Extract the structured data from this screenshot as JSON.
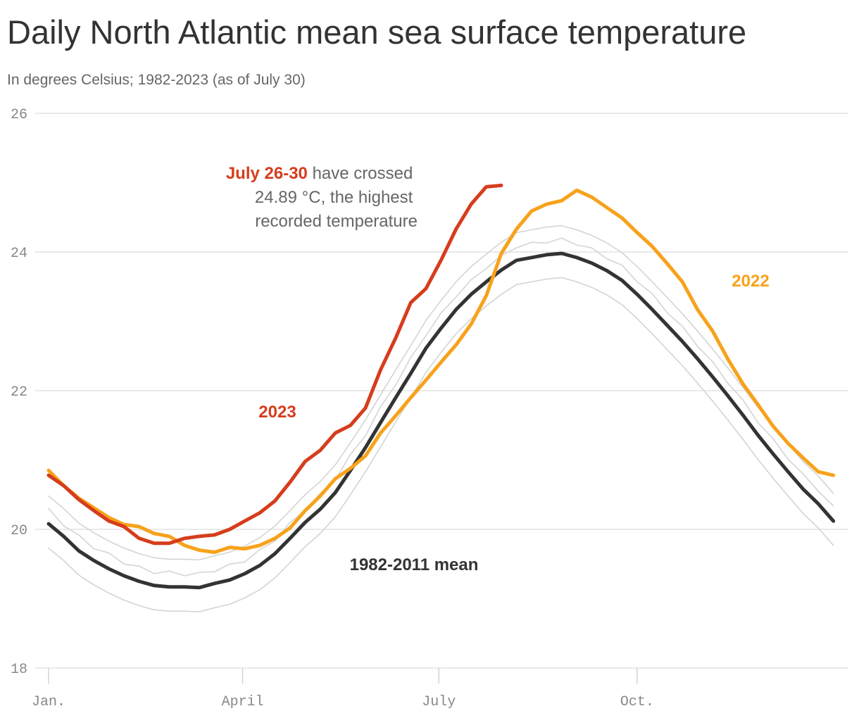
{
  "chart_data": {
    "type": "line",
    "title": "Daily North Atlantic mean sea surface temperature",
    "subtitle": "In degrees Celsius; 1982-2023 (as of July 30)",
    "annotation": {
      "highlight": "July 26-30",
      "lines": [
        "have crossed",
        "24.89 °C, the highest",
        "recorded temperature"
      ]
    },
    "x": [
      1,
      8,
      15,
      22,
      29,
      36,
      43,
      50,
      57,
      64,
      71,
      78,
      85,
      92,
      99,
      106,
      113,
      120,
      127,
      134,
      141,
      148,
      155,
      162,
      169,
      176,
      183,
      190,
      197,
      204,
      211,
      218,
      225,
      232,
      239,
      246,
      253,
      260,
      267,
      274,
      281,
      288,
      295,
      302,
      309,
      316,
      323,
      330,
      337,
      344,
      351,
      358,
      365
    ],
    "xlim": [
      1,
      372
    ],
    "xticks": [
      {
        "value": 1,
        "label": "Jan."
      },
      {
        "value": 91,
        "label": "April"
      },
      {
        "value": 182,
        "label": "July"
      },
      {
        "value": 274,
        "label": "Oct."
      }
    ],
    "ylim": [
      18,
      26
    ],
    "yticks": [
      18,
      20,
      22,
      24,
      26
    ],
    "grid": true,
    "series": [
      {
        "color": "#d4d4d4",
        "values": [
          20.48,
          20.3,
          20.09,
          19.95,
          19.83,
          19.73,
          19.65,
          19.59,
          19.57,
          19.57,
          19.56,
          19.62,
          19.67,
          19.76,
          19.88,
          20.05,
          20.27,
          20.5,
          20.69,
          20.93,
          21.25,
          21.58,
          21.94,
          22.3,
          22.65,
          23.01,
          23.3,
          23.57,
          23.79,
          23.97,
          24.14,
          24.28,
          24.32,
          24.36,
          24.38,
          24.32,
          24.24,
          24.13,
          23.99,
          23.79,
          23.57,
          23.34,
          23.11,
          22.86,
          22.6,
          22.33,
          22.05,
          21.76,
          21.49,
          21.23,
          20.98,
          20.77,
          20.52
        ]
      },
      {
        "color": "#d4d4d4",
        "values": [
          19.73,
          19.55,
          19.34,
          19.2,
          19.08,
          18.98,
          18.9,
          18.84,
          18.82,
          18.82,
          18.81,
          18.87,
          18.92,
          19.01,
          19.13,
          19.3,
          19.52,
          19.75,
          19.94,
          20.18,
          20.5,
          20.83,
          21.19,
          21.55,
          21.9,
          22.26,
          22.55,
          22.82,
          23.04,
          23.22,
          23.39,
          23.53,
          23.57,
          23.61,
          23.63,
          23.57,
          23.49,
          23.38,
          23.24,
          23.04,
          22.82,
          22.59,
          22.36,
          22.11,
          21.85,
          21.58,
          21.3,
          21.01,
          20.74,
          20.48,
          20.23,
          20.02,
          19.77
        ]
      },
      {
        "color": "#d4d4d4",
        "values": [
          20.3,
          20.05,
          19.92,
          19.72,
          19.66,
          19.5,
          19.47,
          19.36,
          19.4,
          19.33,
          19.38,
          19.39,
          19.5,
          19.53,
          19.71,
          19.83,
          20.1,
          20.27,
          20.52,
          20.71,
          21.08,
          21.35,
          21.77,
          22.08,
          22.48,
          22.79,
          23.12,
          23.35,
          23.6,
          23.76,
          23.95,
          24.06,
          24.14,
          24.13,
          24.2,
          24.1,
          24.06,
          23.9,
          23.81,
          23.57,
          23.4,
          23.12,
          22.93,
          22.64,
          22.42,
          22.11,
          21.87,
          21.54,
          21.31,
          21.01,
          20.8,
          20.55,
          20.34
        ]
      },
      {
        "name": "1982-2011 mean",
        "color": "#333333",
        "values": [
          20.08,
          19.9,
          19.69,
          19.55,
          19.43,
          19.33,
          19.25,
          19.19,
          19.17,
          19.17,
          19.16,
          19.22,
          19.27,
          19.36,
          19.48,
          19.65,
          19.87,
          20.1,
          20.29,
          20.53,
          20.85,
          21.18,
          21.54,
          21.9,
          22.25,
          22.61,
          22.9,
          23.17,
          23.39,
          23.57,
          23.74,
          23.88,
          23.92,
          23.96,
          23.98,
          23.92,
          23.84,
          23.73,
          23.59,
          23.39,
          23.17,
          22.94,
          22.71,
          22.46,
          22.2,
          21.93,
          21.65,
          21.36,
          21.09,
          20.83,
          20.58,
          20.37,
          20.12
        ]
      },
      {
        "name": "2022",
        "color": "#f7a21b",
        "values": [
          20.85,
          20.63,
          20.45,
          20.31,
          20.17,
          20.07,
          20.04,
          19.94,
          19.9,
          19.77,
          19.7,
          19.67,
          19.74,
          19.72,
          19.77,
          19.87,
          20.02,
          20.27,
          20.48,
          20.73,
          20.88,
          21.06,
          21.39,
          21.64,
          21.9,
          22.15,
          22.41,
          22.66,
          22.96,
          23.37,
          23.98,
          24.33,
          24.59,
          24.69,
          24.74,
          24.89,
          24.79,
          24.64,
          24.49,
          24.28,
          24.08,
          23.83,
          23.57,
          23.17,
          22.86,
          22.46,
          22.1,
          21.8,
          21.49,
          21.24,
          21.03,
          20.83,
          20.78
        ]
      },
      {
        "name": "2023",
        "color": "#d63d1c",
        "values": [
          20.78,
          20.63,
          20.43,
          20.27,
          20.12,
          20.04,
          19.87,
          19.8,
          19.8,
          19.87,
          19.9,
          19.92,
          20.0,
          20.12,
          20.24,
          20.41,
          20.68,
          20.98,
          21.14,
          21.39,
          21.5,
          21.75,
          22.3,
          22.76,
          23.27,
          23.47,
          23.88,
          24.33,
          24.69,
          24.94,
          24.96,
          null,
          null,
          null,
          null,
          null,
          null,
          null,
          null,
          null,
          null,
          null,
          null,
          null,
          null,
          null,
          null,
          null,
          null,
          null,
          null,
          null,
          null
        ]
      }
    ]
  }
}
